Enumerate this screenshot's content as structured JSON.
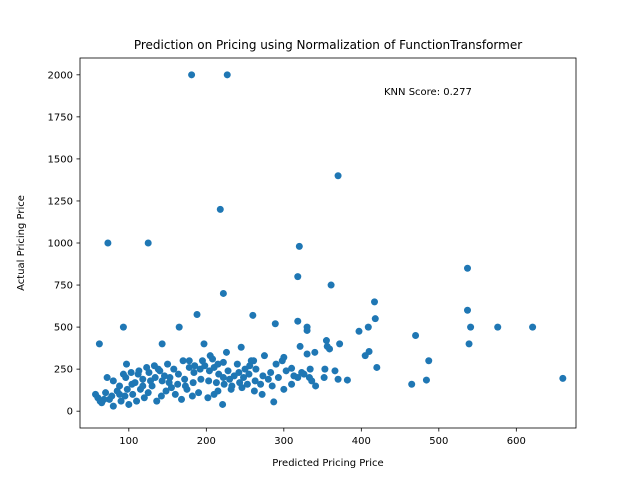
{
  "chart_data": {
    "type": "scatter",
    "title": "Prediction on Pricing using Normalization of FunctionTransformer",
    "xlabel": "Predicted Pricing Price",
    "ylabel": "Actual Pricing Price",
    "xlim": [
      37,
      677
    ],
    "ylim": [
      -100,
      2100
    ],
    "xticks": [
      100,
      200,
      300,
      400,
      500,
      600
    ],
    "yticks": [
      0,
      250,
      500,
      750,
      1000,
      1250,
      1500,
      1750,
      2000
    ],
    "grid": false,
    "marker_color": "#1f77b4",
    "annotation": "KNN Score: 0.277",
    "series": [
      {
        "points": [
          [
            181,
            2000
          ],
          [
            227,
            2000
          ],
          [
            370,
            1400
          ],
          [
            218,
            1200
          ],
          [
            73,
            1000
          ],
          [
            125,
            1000
          ],
          [
            320,
            980
          ],
          [
            537,
            850
          ],
          [
            318,
            800
          ],
          [
            361,
            750
          ],
          [
            222,
            700
          ],
          [
            417,
            650
          ],
          [
            537,
            600
          ],
          [
            188,
            575
          ],
          [
            260,
            570
          ],
          [
            418,
            550
          ],
          [
            318,
            535
          ],
          [
            330,
            500
          ],
          [
            541,
            500
          ],
          [
            576,
            500
          ],
          [
            621,
            500
          ],
          [
            93,
            500
          ],
          [
            165,
            500
          ],
          [
            409,
            500
          ],
          [
            330,
            480
          ],
          [
            397,
            475
          ],
          [
            289,
            520
          ],
          [
            470,
            450
          ],
          [
            355,
            420
          ],
          [
            372,
            400
          ],
          [
            539,
            400
          ],
          [
            62,
            400
          ],
          [
            143,
            400
          ],
          [
            197,
            400
          ],
          [
            321,
            385
          ],
          [
            359,
            370
          ],
          [
            356,
            385
          ],
          [
            410,
            355
          ],
          [
            245,
            380
          ],
          [
            340,
            350
          ],
          [
            330,
            340
          ],
          [
            405,
            330
          ],
          [
            487,
            300
          ],
          [
            261,
            300
          ],
          [
            420,
            260
          ],
          [
            353,
            250
          ],
          [
            310,
            255
          ],
          [
            366,
            240
          ],
          [
            298,
            300
          ],
          [
            290,
            280
          ],
          [
            352,
            200
          ],
          [
            334,
            250
          ],
          [
            382,
            185
          ],
          [
            370,
            190
          ],
          [
            341,
            150
          ],
          [
            465,
            160
          ],
          [
            484,
            185
          ],
          [
            660,
            195
          ],
          [
            287,
            55
          ],
          [
            221,
            40
          ],
          [
            170,
            300
          ],
          [
            150,
            280
          ],
          [
            97,
            280
          ],
          [
            205,
            330
          ],
          [
            226,
            350
          ],
          [
            300,
            320
          ],
          [
            275,
            330
          ],
          [
            258,
            300
          ],
          [
            264,
            250
          ],
          [
            255,
            220
          ],
          [
            240,
            280
          ],
          [
            230,
            190
          ],
          [
            248,
            200
          ],
          [
            270,
            160
          ],
          [
            280,
            190
          ],
          [
            318,
            200
          ],
          [
            326,
            220
          ],
          [
            336,
            180
          ],
          [
            310,
            160
          ],
          [
            300,
            130
          ],
          [
            285,
            150
          ],
          [
            262,
            120
          ],
          [
            272,
            100
          ],
          [
            246,
            140
          ],
          [
            232,
            130
          ],
          [
            215,
            120
          ],
          [
            210,
            100
          ],
          [
            202,
            80
          ],
          [
            190,
            110
          ],
          [
            182,
            90
          ],
          [
            175,
            130
          ],
          [
            168,
            70
          ],
          [
            160,
            100
          ],
          [
            155,
            140
          ],
          [
            148,
            120
          ],
          [
            142,
            90
          ],
          [
            136,
            60
          ],
          [
            130,
            150
          ],
          [
            125,
            110
          ],
          [
            120,
            80
          ],
          [
            115,
            130
          ],
          [
            110,
            60
          ],
          [
            105,
            100
          ],
          [
            100,
            40
          ],
          [
            95,
            90
          ],
          [
            90,
            60
          ],
          [
            85,
            120
          ],
          [
            80,
            30
          ],
          [
            75,
            70
          ],
          [
            70,
            110
          ],
          [
            65,
            50
          ],
          [
            60,
            80
          ],
          [
            57,
            100
          ],
          [
            72,
            200
          ],
          [
            80,
            180
          ],
          [
            88,
            150
          ],
          [
            96,
            200
          ],
          [
            104,
            160
          ],
          [
            112,
            220
          ],
          [
            118,
            190
          ],
          [
            126,
            230
          ],
          [
            134,
            200
          ],
          [
            140,
            240
          ],
          [
            146,
            210
          ],
          [
            152,
            170
          ],
          [
            158,
            250
          ],
          [
            164,
            220
          ],
          [
            172,
            190
          ],
          [
            178,
            260
          ],
          [
            184,
            230
          ],
          [
            192,
            250
          ],
          [
            198,
            270
          ],
          [
            204,
            240
          ],
          [
            210,
            260
          ],
          [
            216,
            220
          ],
          [
            222,
            200
          ],
          [
            228,
            240
          ],
          [
            236,
            210
          ],
          [
            242,
            230
          ],
          [
            250,
            250
          ],
          [
            256,
            270
          ],
          [
            215,
            280
          ],
          [
            195,
            300
          ],
          [
            185,
            270
          ],
          [
            178,
            300
          ],
          [
            208,
            310
          ],
          [
            222,
            290
          ],
          [
            138,
            250
          ],
          [
            128,
            180
          ],
          [
            118,
            150
          ],
          [
            108,
            170
          ],
          [
            98,
            130
          ],
          [
            88,
            100
          ],
          [
            78,
            90
          ],
          [
            68,
            70
          ],
          [
            63,
            60
          ],
          [
            93,
            220
          ],
          [
            103,
            230
          ],
          [
            113,
            240
          ],
          [
            123,
            260
          ],
          [
            133,
            270
          ],
          [
            143,
            180
          ],
          [
            153,
            200
          ],
          [
            163,
            160
          ],
          [
            173,
            150
          ],
          [
            183,
            170
          ],
          [
            193,
            190
          ],
          [
            203,
            180
          ],
          [
            213,
            170
          ],
          [
            223,
            160
          ],
          [
            233,
            150
          ],
          [
            243,
            170
          ],
          [
            253,
            160
          ],
          [
            263,
            180
          ],
          [
            273,
            210
          ],
          [
            283,
            230
          ],
          [
            293,
            200
          ],
          [
            303,
            240
          ],
          [
            313,
            210
          ],
          [
            323,
            230
          ],
          [
            333,
            200
          ]
        ]
      }
    ]
  }
}
